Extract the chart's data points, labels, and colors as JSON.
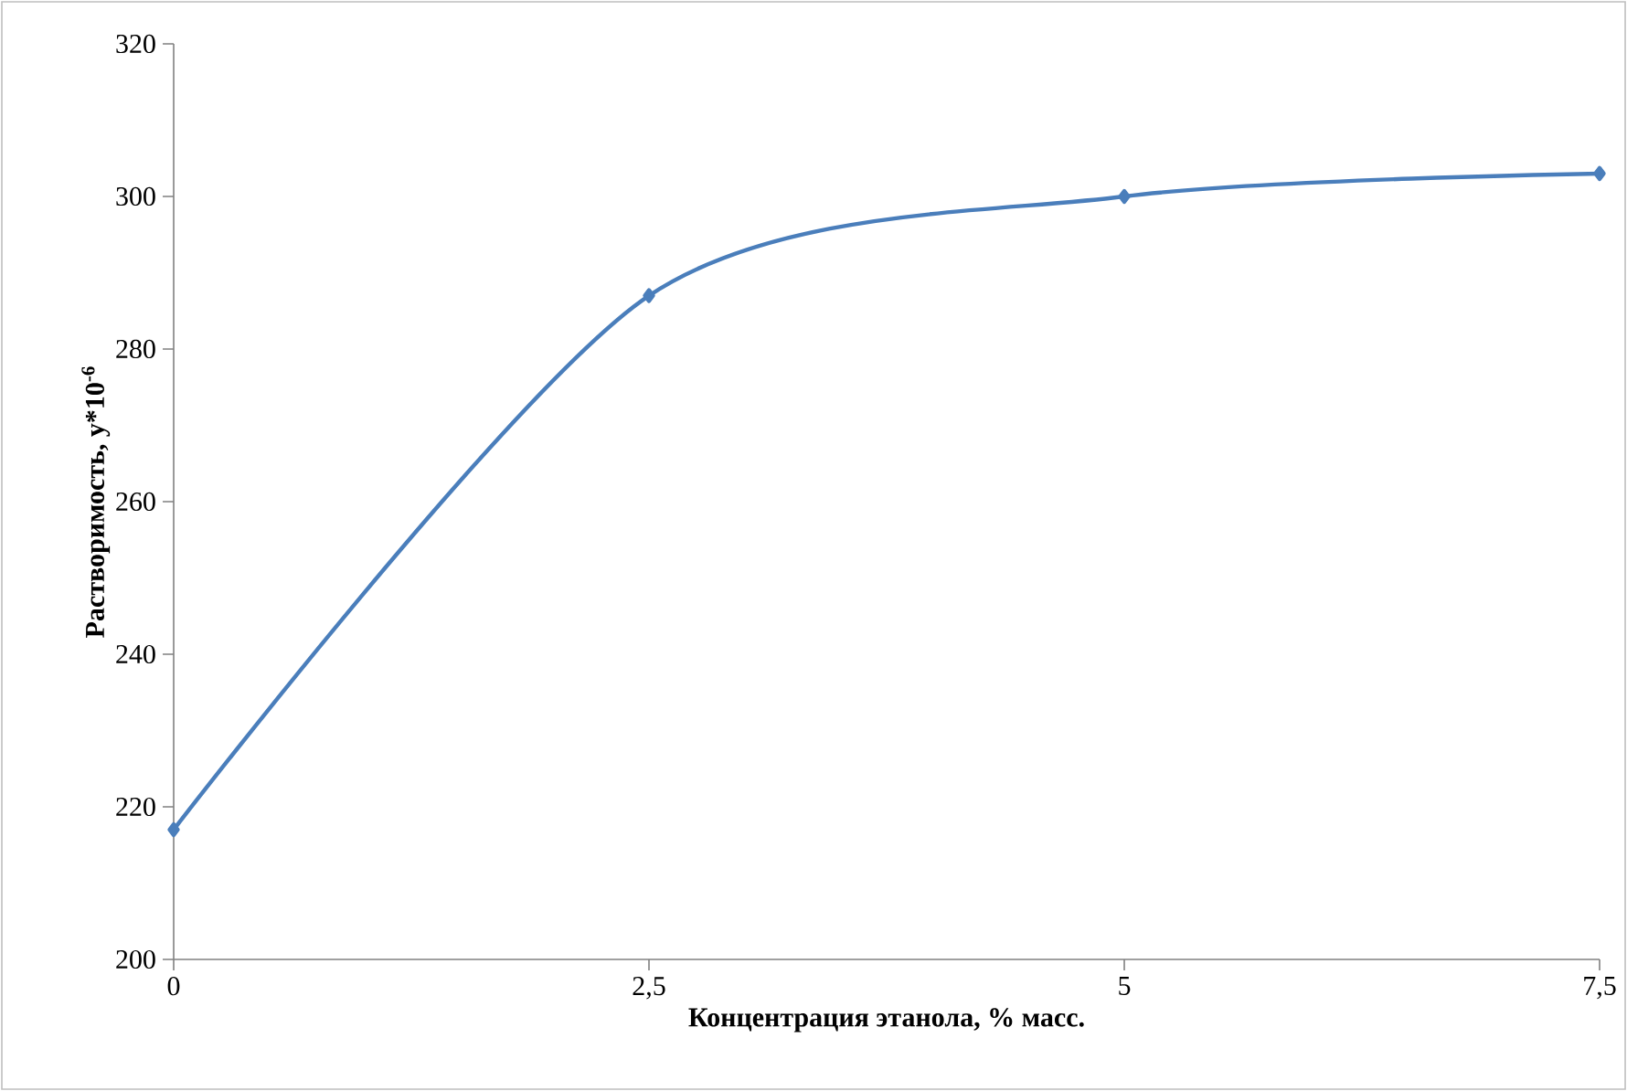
{
  "chart_data": {
    "type": "line",
    "xlabel": "Концентрация этанола, % масс.",
    "ylabel": "Растворимость, y*10$^{-6}$",
    "x": [
      0,
      2.5,
      5,
      7.5
    ],
    "series": [
      {
        "color": "#4a7ebb",
        "values": [
          217,
          287,
          300,
          303
        ]
      }
    ],
    "xlim": [
      0,
      7.5
    ],
    "ylim": [
      200,
      320
    ],
    "xticks": [
      0,
      {
        "value": 2.5,
        "label": "2,5"
      },
      5,
      {
        "value": 7.5,
        "label": "7,5"
      }
    ],
    "yticks": [
      200,
      220,
      240,
      260,
      280,
      300,
      320
    ],
    "marker": "diamond",
    "line_style": "solid"
  }
}
